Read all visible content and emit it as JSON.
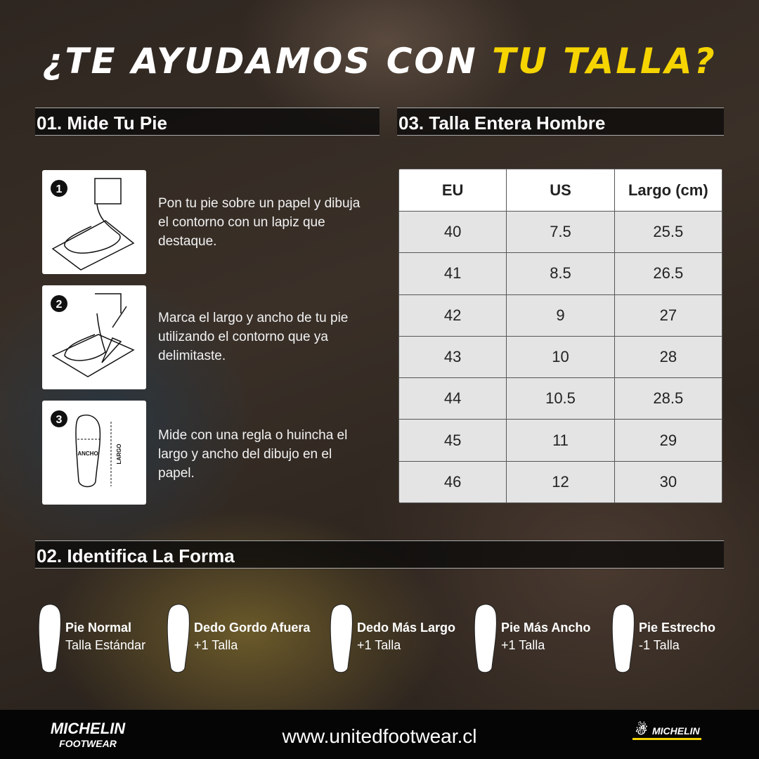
{
  "title": {
    "part1": "¿TE AYUDAMOS CON ",
    "part2": "TU TALLA?"
  },
  "section1": {
    "heading": "01. Mide Tu Pie",
    "steps": [
      {
        "number": "1",
        "text": "Pon tu pie sobre un papel y dibuja el contorno con un lapiz que destaque."
      },
      {
        "number": "2",
        "text": "Marca el largo y ancho de tu pie utilizando el contorno que ya delimitaste."
      },
      {
        "number": "3",
        "text": "Mide con una regla o huincha el largo y ancho del dibujo en el papel.",
        "labels": {
          "width": "ANCHO",
          "length": "LARGO"
        }
      }
    ]
  },
  "section3": {
    "heading": "03. Talla Entera Hombre",
    "columns": [
      "EU",
      "US",
      "Largo (cm)"
    ],
    "rows": [
      [
        "40",
        "7.5",
        "25.5"
      ],
      [
        "41",
        "8.5",
        "26.5"
      ],
      [
        "42",
        "9",
        "27"
      ],
      [
        "43",
        "10",
        "28"
      ],
      [
        "44",
        "10.5",
        "28.5"
      ],
      [
        "45",
        "11",
        "29"
      ],
      [
        "46",
        "12",
        "30"
      ]
    ]
  },
  "section2": {
    "heading": "02. Identifica La Forma",
    "shapes": [
      {
        "name": "Pie Normal",
        "size": "Talla Estándar"
      },
      {
        "name": "Dedo Gordo Afuera",
        "size": "+1 Talla"
      },
      {
        "name": "Dedo Más Largo",
        "size": "+1 Talla"
      },
      {
        "name": "Pie Más Ancho",
        "size": "+1 Talla"
      },
      {
        "name": "Pie Estrecho",
        "size": "-1 Talla"
      }
    ]
  },
  "footer": {
    "brand": "MICHELIN",
    "brand_sub": "FOOTWEAR",
    "url": "www.unitedfootwear.cl",
    "logo": "MICHELIN"
  },
  "colors": {
    "accent": "#f5d400"
  }
}
